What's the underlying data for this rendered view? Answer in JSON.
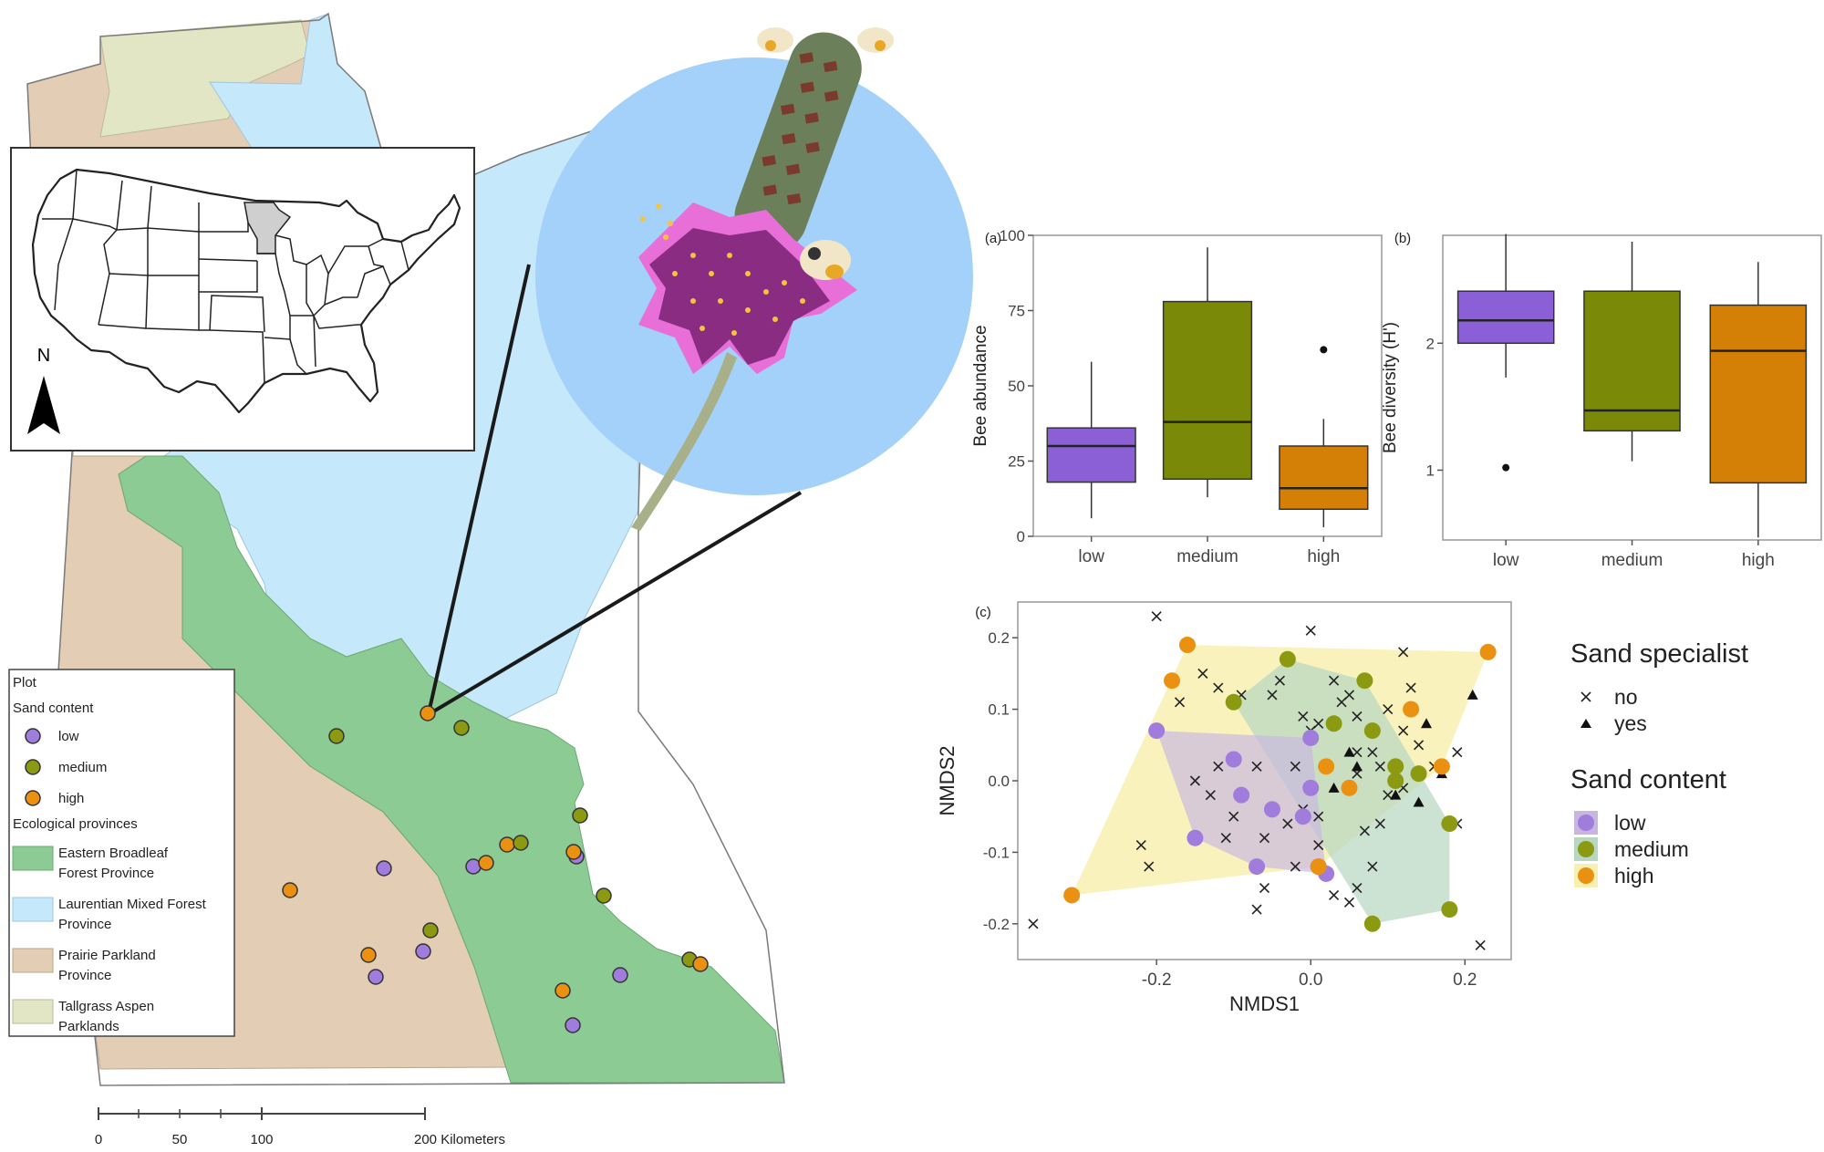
{
  "map": {
    "legend": {
      "title": "Plot",
      "sand_title": "Sand content",
      "sand_items": [
        {
          "label": "low",
          "color": "#a07cdd"
        },
        {
          "label": "medium",
          "color": "#8c9a12"
        },
        {
          "label": "high",
          "color": "#ea9111"
        }
      ],
      "eco_title": "Ecological provinces",
      "eco_items": [
        {
          "line1": "Eastern Broadleaf",
          "line2": "Forest Province",
          "color": "#8ccb93"
        },
        {
          "line1": "Laurentian Mixed Forest",
          "line2": "Province",
          "color": "#c5e8fa"
        },
        {
          "line1": "Prairie Parkland",
          "line2": "Province",
          "color": "#e3cdb4"
        },
        {
          "line1": "Tallgrass Aspen",
          "line2": "Parklands",
          "color": "#e3e6c4"
        }
      ]
    },
    "scale": {
      "ticks": [
        "0",
        "50",
        "100",
        "200 Kilometers"
      ]
    },
    "north_label": "N",
    "inset_highlight_state": "Minnesota"
  },
  "chart_data": [
    {
      "panel": "(a)",
      "type": "boxplot",
      "ylabel": "Bee abundance",
      "categories": [
        "low",
        "medium",
        "high"
      ],
      "yticks": [
        "0",
        "25",
        "50",
        "75",
        "100"
      ],
      "ylim": [
        0,
        100
      ],
      "colors": [
        "#8b5fd6",
        "#7a8a08",
        "#d47f06"
      ],
      "boxes": [
        {
          "min": 6,
          "q1": 18,
          "median": 30,
          "q3": 36,
          "max": 58,
          "outliers": []
        },
        {
          "min": 13,
          "q1": 19,
          "median": 38,
          "q3": 78,
          "max": 96,
          "outliers": []
        },
        {
          "min": 3,
          "q1": 9,
          "median": 16,
          "q3": 30,
          "max": 39,
          "outliers": [
            62
          ]
        }
      ]
    },
    {
      "panel": "(b)",
      "type": "boxplot",
      "ylabel": "Bee diversity (H')",
      "categories": [
        "low",
        "medium",
        "high"
      ],
      "yticks": [
        "1",
        "2"
      ],
      "ylim": [
        0.45,
        2.85
      ],
      "colors": [
        "#8b5fd6",
        "#7a8a08",
        "#d47f06"
      ],
      "boxes": [
        {
          "min": 1.73,
          "q1": 2.0,
          "median": 2.18,
          "q3": 2.41,
          "max": 2.86,
          "outliers": [
            1.02
          ]
        },
        {
          "min": 1.07,
          "q1": 1.31,
          "median": 1.47,
          "q3": 2.41,
          "max": 2.8,
          "outliers": []
        },
        {
          "min": 0.47,
          "q1": 0.9,
          "median": 1.94,
          "q3": 2.3,
          "max": 2.64,
          "outliers": []
        }
      ]
    },
    {
      "panel": "(c)",
      "type": "scatter",
      "xlabel": "NMDS1",
      "ylabel": "NMDS2",
      "xticks": [
        "-0.2",
        "0.0",
        "0.2"
      ],
      "yticks": [
        "-0.2",
        "-0.1",
        "0.0",
        "0.1",
        "0.2"
      ],
      "xlim": [
        -0.38,
        0.26
      ],
      "ylim": [
        -0.25,
        0.25
      ],
      "legend_specialist": {
        "title": "Sand specialist",
        "items": [
          {
            "label": "no",
            "marker": "x"
          },
          {
            "label": "yes",
            "marker": "triangle"
          }
        ]
      },
      "legend_sand": {
        "title": "Sand content",
        "items": [
          {
            "label": "low",
            "color": "#a07cdd",
            "fill": "#c8b6e2"
          },
          {
            "label": "medium",
            "color": "#8c9a12",
            "fill": "#b7d7c2"
          },
          {
            "label": "high",
            "color": "#ea9111",
            "fill": "#f8f0b0"
          }
        ]
      },
      "series": [
        {
          "name": "low",
          "points": [
            [
              -0.2,
              0.07
            ],
            [
              -0.1,
              0.03
            ],
            [
              -0.09,
              -0.02
            ],
            [
              0.0,
              0.06
            ],
            [
              -0.15,
              -0.08
            ],
            [
              -0.07,
              -0.12
            ],
            [
              -0.05,
              -0.04
            ],
            [
              -0.01,
              -0.05
            ],
            [
              0.01,
              -0.12
            ],
            [
              0.02,
              -0.13
            ],
            [
              0.0,
              -0.01
            ]
          ]
        },
        {
          "name": "medium",
          "points": [
            [
              -0.1,
              0.11
            ],
            [
              -0.03,
              0.17
            ],
            [
              0.03,
              0.08
            ],
            [
              0.07,
              0.14
            ],
            [
              0.08,
              0.07
            ],
            [
              0.11,
              0.0
            ],
            [
              0.11,
              0.02
            ],
            [
              0.14,
              0.01
            ],
            [
              0.18,
              -0.06
            ],
            [
              0.18,
              -0.18
            ],
            [
              0.08,
              -0.2
            ]
          ]
        },
        {
          "name": "high",
          "points": [
            [
              -0.31,
              -0.16
            ],
            [
              -0.16,
              0.19
            ],
            [
              -0.18,
              0.14
            ],
            [
              0.02,
              0.02
            ],
            [
              0.05,
              -0.01
            ],
            [
              0.13,
              0.1
            ],
            [
              0.23,
              0.18
            ],
            [
              0.01,
              -0.12
            ],
            [
              0.17,
              0.02
            ]
          ]
        },
        {
          "name": "sand specialist: no",
          "points": [
            [
              -0.2,
              0.23
            ],
            [
              -0.14,
              0.15
            ],
            [
              -0.12,
              0.13
            ],
            [
              -0.17,
              0.11
            ],
            [
              -0.09,
              0.12
            ],
            [
              -0.05,
              0.12
            ],
            [
              -0.12,
              0.02
            ],
            [
              -0.07,
              0.02
            ],
            [
              -0.09,
              -0.02
            ],
            [
              -0.1,
              -0.05
            ],
            [
              -0.13,
              -0.02
            ],
            [
              -0.06,
              -0.08
            ],
            [
              -0.11,
              -0.08
            ],
            [
              -0.02,
              0.02
            ],
            [
              -0.01,
              -0.04
            ],
            [
              -0.01,
              0.09
            ],
            [
              0.0,
              0.21
            ],
            [
              0.01,
              0.08
            ],
            [
              0.03,
              0.14
            ],
            [
              0.04,
              0.11
            ],
            [
              0.05,
              0.12
            ],
            [
              0.06,
              0.09
            ],
            [
              0.06,
              0.04
            ],
            [
              0.06,
              0.01
            ],
            [
              0.08,
              0.04
            ],
            [
              0.09,
              0.02
            ],
            [
              0.1,
              0.1
            ],
            [
              0.11,
              0.0
            ],
            [
              0.12,
              0.18
            ],
            [
              0.1,
              -0.02
            ],
            [
              0.12,
              -0.01
            ],
            [
              0.09,
              -0.06
            ],
            [
              0.08,
              -0.12
            ],
            [
              0.06,
              -0.15
            ],
            [
              0.03,
              -0.16
            ],
            [
              0.01,
              -0.09
            ],
            [
              -0.02,
              -0.12
            ],
            [
              -0.06,
              -0.15
            ],
            [
              -0.07,
              -0.18
            ],
            [
              -0.03,
              -0.06
            ],
            [
              -0.04,
              0.14
            ],
            [
              0.0,
              0.07
            ],
            [
              0.01,
              -0.05
            ],
            [
              -0.36,
              -0.2
            ],
            [
              -0.22,
              -0.09
            ],
            [
              -0.21,
              -0.12
            ],
            [
              0.22,
              -0.23
            ],
            [
              0.19,
              -0.06
            ],
            [
              0.19,
              0.04
            ],
            [
              0.16,
              0.02
            ],
            [
              0.14,
              0.05
            ],
            [
              0.07,
              -0.07
            ],
            [
              0.05,
              -0.17
            ],
            [
              -0.15,
              0.0
            ],
            [
              0.12,
              0.07
            ],
            [
              0.13,
              0.13
            ]
          ]
        },
        {
          "name": "sand specialist: yes",
          "points": [
            [
              0.21,
              0.12
            ],
            [
              0.15,
              0.08
            ],
            [
              0.17,
              0.01
            ],
            [
              0.14,
              -0.03
            ],
            [
              0.18,
              -0.06
            ],
            [
              0.11,
              -0.02
            ],
            [
              0.06,
              0.02
            ],
            [
              0.03,
              -0.01
            ],
            [
              0.05,
              0.04
            ]
          ]
        }
      ]
    }
  ]
}
